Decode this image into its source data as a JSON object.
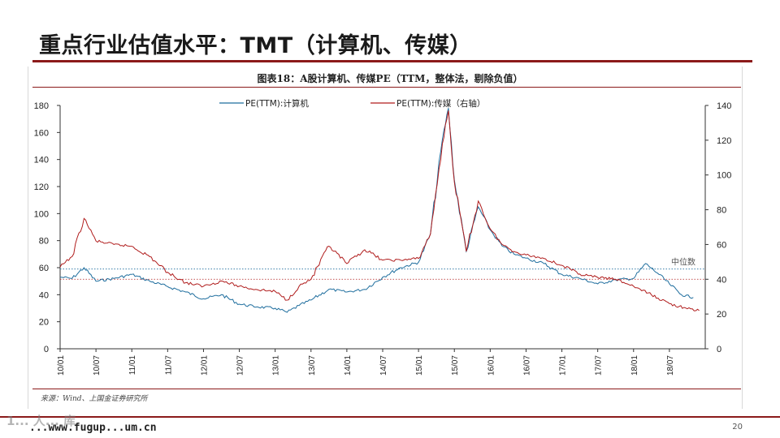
{
  "slide": {
    "title": "重点行业估值水平：TMT（计算机、传媒）",
    "page_number": "20",
    "watermark": "1... 人... 库",
    "site": "...www.fugup...um.cn"
  },
  "chart_data": {
    "type": "line",
    "title": "图表18：A股计算机、传媒PE（TTM，整体法，剔除负值）",
    "source": "来源：Wind、上国金证券研究所",
    "x_tick_labels": [
      "10/01",
      "10/07",
      "11/01",
      "11/07",
      "12/01",
      "12/07",
      "13/01",
      "13/07",
      "14/01",
      "14/07",
      "15/01",
      "15/07",
      "16/01",
      "16/07",
      "17/01",
      "17/07",
      "18/01",
      "18/07"
    ],
    "x_range": [
      "2010-01",
      "2019-01"
    ],
    "y_left": {
      "min": 0,
      "max": 180,
      "ticks": [
        0,
        20,
        40,
        60,
        80,
        100,
        120,
        140,
        160,
        180
      ]
    },
    "y_right": {
      "min": 0,
      "max": 140,
      "ticks": [
        0,
        20,
        40,
        60,
        80,
        100,
        120,
        140
      ]
    },
    "grid": false,
    "legend_position": "top",
    "annotation": "中位数",
    "series": [
      {
        "name": "PE(TTM):计算机",
        "axis": "left",
        "color": "#1f6e9e",
        "points": [
          [
            "2010-01",
            53
          ],
          [
            "2010-03",
            52
          ],
          [
            "2010-05",
            60
          ],
          [
            "2010-07",
            50
          ],
          [
            "2010-10",
            52
          ],
          [
            "2011-01",
            55
          ],
          [
            "2011-04",
            50
          ],
          [
            "2011-07",
            46
          ],
          [
            "2011-10",
            42
          ],
          [
            "2012-01",
            37
          ],
          [
            "2012-04",
            40
          ],
          [
            "2012-07",
            33
          ],
          [
            "2012-10",
            31
          ],
          [
            "2013-01",
            30
          ],
          [
            "2013-03",
            27
          ],
          [
            "2013-05",
            32
          ],
          [
            "2013-07",
            36
          ],
          [
            "2013-10",
            44
          ],
          [
            "2014-01",
            42
          ],
          [
            "2014-04",
            44
          ],
          [
            "2014-07",
            53
          ],
          [
            "2014-10",
            60
          ],
          [
            "2015-01",
            64
          ],
          [
            "2015-03",
            85
          ],
          [
            "2015-05",
            155
          ],
          [
            "2015-06",
            178
          ],
          [
            "2015-07",
            125
          ],
          [
            "2015-09",
            72
          ],
          [
            "2015-11",
            105
          ],
          [
            "2016-01",
            88
          ],
          [
            "2016-03",
            76
          ],
          [
            "2016-05",
            70
          ],
          [
            "2016-07",
            67
          ],
          [
            "2016-10",
            63
          ],
          [
            "2017-01",
            55
          ],
          [
            "2017-04",
            52
          ],
          [
            "2017-07",
            48
          ],
          [
            "2017-10",
            51
          ],
          [
            "2018-01",
            52
          ],
          [
            "2018-03",
            63
          ],
          [
            "2018-05",
            56
          ],
          [
            "2018-07",
            48
          ],
          [
            "2018-09",
            40
          ],
          [
            "2018-11",
            38
          ]
        ]
      },
      {
        "name": "PE(TTM):传媒（右轴）",
        "axis": "right",
        "color": "#b01c1c",
        "points": [
          [
            "2010-01",
            47
          ],
          [
            "2010-03",
            53
          ],
          [
            "2010-05",
            75
          ],
          [
            "2010-07",
            62
          ],
          [
            "2010-10",
            60
          ],
          [
            "2011-01",
            59
          ],
          [
            "2011-04",
            53
          ],
          [
            "2011-07",
            44
          ],
          [
            "2011-10",
            38
          ],
          [
            "2012-01",
            36
          ],
          [
            "2012-04",
            39
          ],
          [
            "2012-07",
            36
          ],
          [
            "2012-10",
            34
          ],
          [
            "2013-01",
            33
          ],
          [
            "2013-03",
            28
          ],
          [
            "2013-05",
            36
          ],
          [
            "2013-07",
            40
          ],
          [
            "2013-10",
            59
          ],
          [
            "2014-01",
            49
          ],
          [
            "2014-04",
            57
          ],
          [
            "2014-07",
            51
          ],
          [
            "2014-10",
            51
          ],
          [
            "2015-01",
            52
          ],
          [
            "2015-03",
            66
          ],
          [
            "2015-05",
            118
          ],
          [
            "2015-06",
            137
          ],
          [
            "2015-07",
            96
          ],
          [
            "2015-09",
            56
          ],
          [
            "2015-11",
            85
          ],
          [
            "2016-01",
            69
          ],
          [
            "2016-03",
            60
          ],
          [
            "2016-05",
            56
          ],
          [
            "2016-07",
            54
          ],
          [
            "2016-10",
            52
          ],
          [
            "2017-01",
            48
          ],
          [
            "2017-04",
            43
          ],
          [
            "2017-07",
            41
          ],
          [
            "2017-10",
            40
          ],
          [
            "2018-01",
            36
          ],
          [
            "2018-04",
            31
          ],
          [
            "2018-07",
            26
          ],
          [
            "2018-10",
            23
          ],
          [
            "2018-12",
            22
          ]
        ]
      }
    ],
    "reference_lines": [
      {
        "axis": "left",
        "value": 59,
        "color": "#1f6e9e"
      },
      {
        "axis": "right",
        "value": 40,
        "color": "#b01c1c"
      }
    ]
  }
}
